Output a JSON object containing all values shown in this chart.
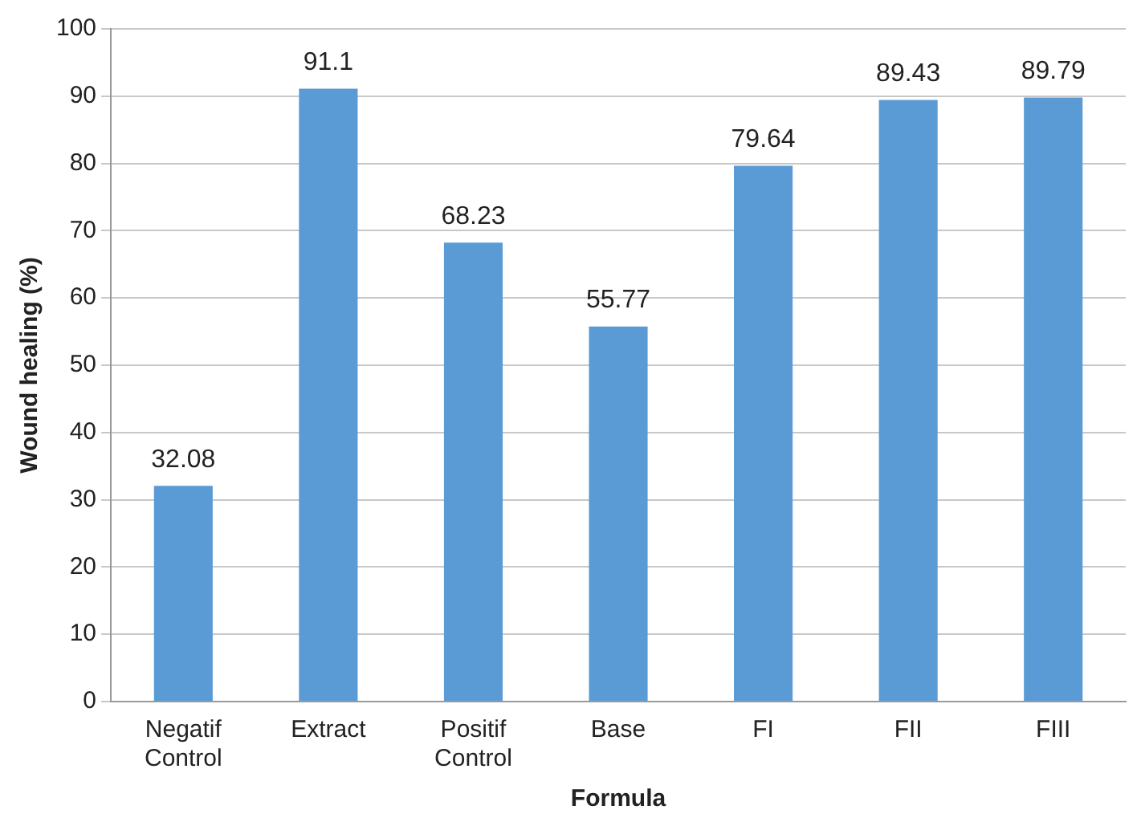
{
  "chart_data": {
    "type": "bar",
    "xlabel": "Formula",
    "ylabel": "Wound healing (%)",
    "categories": [
      "Negatif Control",
      "Extract",
      "Positif Control",
      "Base",
      "FI",
      "FII",
      "FIII"
    ],
    "values": [
      32.08,
      91.1,
      68.23,
      55.77,
      79.64,
      89.43,
      89.79
    ],
    "color": "#5b9bd5",
    "ylim": [
      0,
      100
    ],
    "yticks": [
      0,
      10,
      20,
      30,
      40,
      50,
      60,
      70,
      80,
      90,
      100
    ],
    "grid": "y",
    "data_labels": true,
    "legend": false
  }
}
